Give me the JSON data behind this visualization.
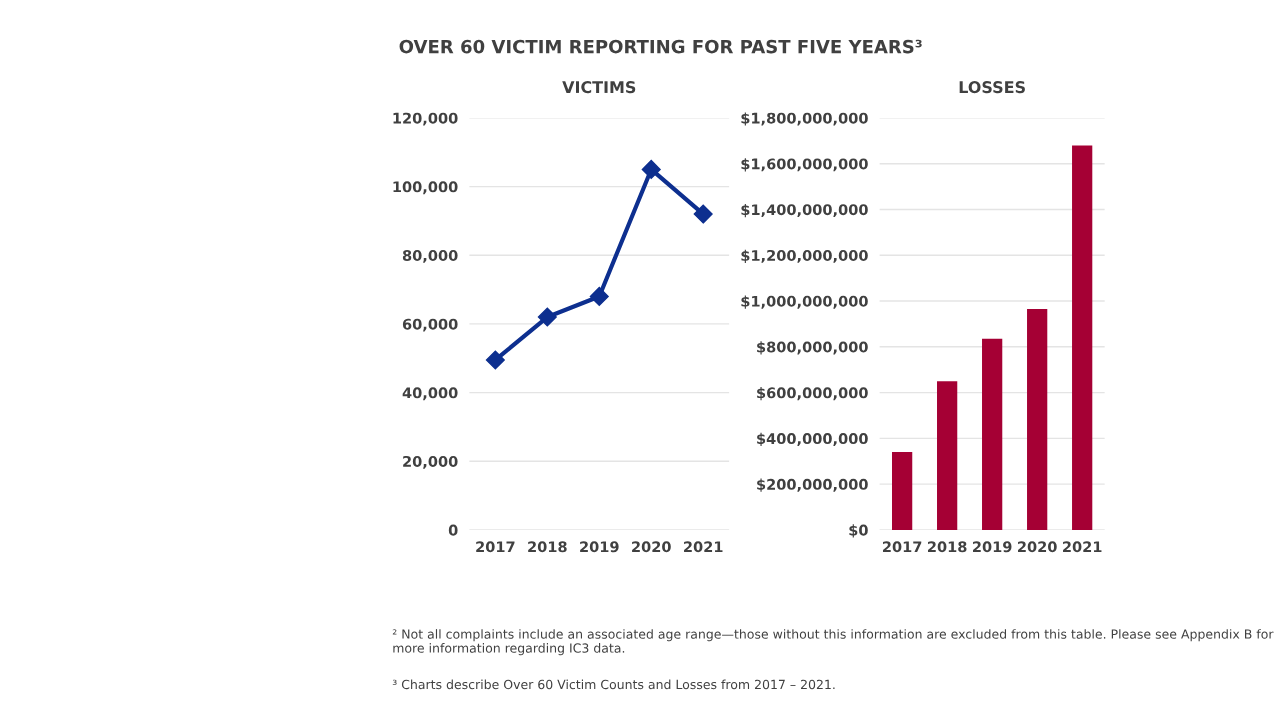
{
  "chart_data": [
    {
      "type": "line",
      "title": "OVER 60 VICTIM REPORTING FOR PAST FIVE YEARS³",
      "subtitle": "VICTIMS",
      "categories": [
        "2017",
        "2018",
        "2019",
        "2020",
        "2021"
      ],
      "series": [
        {
          "color": "#0d2f8f",
          "values": [
            49500,
            62000,
            68000,
            105000,
            92000
          ]
        }
      ],
      "ylim": [
        0,
        120000
      ],
      "yticks": [
        0,
        {
          "value": 20000,
          "label": "20,000"
        },
        {
          "value": 40000,
          "label": "40,000"
        },
        {
          "value": 60000,
          "label": "60,000"
        },
        {
          "value": 80000,
          "label": "80,000"
        },
        {
          "value": 100000,
          "label": "100,000"
        },
        {
          "value": 120000,
          "label": "120,000"
        }
      ],
      "grid": "y",
      "marker": "diamond",
      "line_style": "solid"
    },
    {
      "type": "bar",
      "subtitle": "LOSSES",
      "categories": [
        "2017",
        "2018",
        "2019",
        "2020",
        "2021"
      ],
      "series": [
        {
          "color": "#a50034",
          "values": [
            340000000,
            650000000,
            835000000,
            965000000,
            1680000000
          ]
        }
      ],
      "ylim": [
        0,
        1800000000
      ],
      "yticks": [
        {
          "value": 0,
          "label": "$0"
        },
        {
          "value": 200000000,
          "label": "$200,000,000"
        },
        {
          "value": 400000000,
          "label": "$400,000,000"
        },
        {
          "value": 600000000,
          "label": "$600,000,000"
        },
        {
          "value": 800000000,
          "label": "$800,000,000"
        },
        {
          "value": 1000000000,
          "label": "$1,000,000,000"
        },
        {
          "value": 1200000000,
          "label": "$1,200,000,000"
        },
        {
          "value": 1400000000,
          "label": "$1,400,000,000"
        },
        {
          "value": 1600000000,
          "label": "$1,600,000,000"
        },
        {
          "value": 1800000000,
          "label": "$1,800,000,000"
        }
      ],
      "grid": "y",
      "annotations": [
        "² Not all complaints include an associated age range—those without this information are excluded from this table. Please see Appendix B for more information regarding IC3 data.",
        "³ Charts describe Over 60 Victim Counts and Losses from 2017 – 2021."
      ]
    }
  ]
}
